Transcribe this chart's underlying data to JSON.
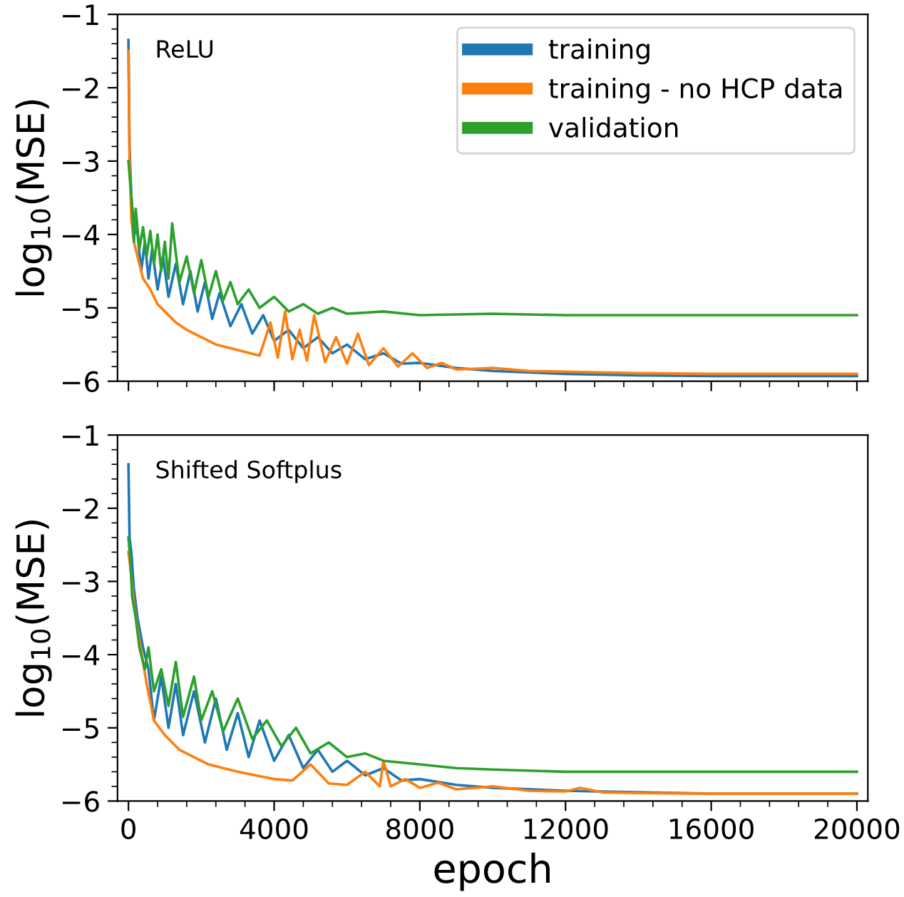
{
  "chart_data": [
    {
      "type": "line",
      "ylabel": "log$_{10}$(MSE)",
      "annotations": [
        "ReLU"
      ],
      "xlim": [
        -300,
        20300
      ],
      "ylim": [
        -6,
        -1
      ],
      "xticks": [
        0,
        4000,
        8000,
        12000,
        16000,
        20000
      ],
      "yticks": [
        -6,
        -5,
        -4,
        -3,
        -2,
        -1
      ],
      "tick_labels": "y",
      "legend": "top right",
      "grid": false,
      "series": [
        {
          "name": "training",
          "color": "#1f77b4",
          "x": [
            0,
            30,
            80,
            150,
            250,
            350,
            450,
            550,
            650,
            800,
            950,
            1100,
            1300,
            1500,
            1700,
            1900,
            2100,
            2300,
            2500,
            2800,
            3100,
            3400,
            3700,
            4000,
            4400,
            4800,
            5200,
            5600,
            6000,
            6500,
            7000,
            7500,
            8000,
            9000,
            10000,
            12000,
            14000,
            16000,
            18000,
            20000
          ],
          "values": [
            -1.35,
            -2.8,
            -3.5,
            -3.9,
            -4.0,
            -4.5,
            -4.1,
            -4.6,
            -4.2,
            -4.75,
            -4.3,
            -4.85,
            -4.4,
            -4.95,
            -4.5,
            -5.05,
            -4.65,
            -5.15,
            -4.8,
            -5.25,
            -4.95,
            -5.35,
            -5.1,
            -5.45,
            -5.3,
            -5.55,
            -5.4,
            -5.62,
            -5.5,
            -5.7,
            -5.62,
            -5.76,
            -5.75,
            -5.82,
            -5.86,
            -5.9,
            -5.92,
            -5.93,
            -5.93,
            -5.93
          ]
        },
        {
          "name": "training - no HCP data",
          "color": "#ff7f0e",
          "x": [
            0,
            30,
            80,
            150,
            250,
            400,
            600,
            800,
            1000,
            1300,
            1600,
            2000,
            2400,
            2800,
            3200,
            3600,
            3900,
            4100,
            4300,
            4500,
            4700,
            4900,
            5100,
            5400,
            5700,
            6000,
            6300,
            6600,
            7000,
            7400,
            7800,
            8200,
            8600,
            9000,
            10000,
            11000,
            12000,
            14000,
            16000,
            20000
          ],
          "values": [
            -1.5,
            -3.0,
            -3.8,
            -4.1,
            -4.3,
            -4.6,
            -4.75,
            -4.95,
            -5.05,
            -5.2,
            -5.3,
            -5.4,
            -5.5,
            -5.55,
            -5.6,
            -5.65,
            -5.2,
            -5.68,
            -5.05,
            -5.7,
            -5.3,
            -5.72,
            -5.1,
            -5.74,
            -5.4,
            -5.76,
            -5.35,
            -5.78,
            -5.55,
            -5.8,
            -5.62,
            -5.82,
            -5.75,
            -5.84,
            -5.82,
            -5.86,
            -5.87,
            -5.89,
            -5.9,
            -5.9
          ]
        },
        {
          "name": "validation",
          "color": "#2ca02c",
          "x": [
            0,
            100,
            150,
            200,
            300,
            400,
            500,
            600,
            700,
            800,
            900,
            1000,
            1100,
            1200,
            1400,
            1600,
            1800,
            2000,
            2200,
            2400,
            2600,
            2800,
            3000,
            3300,
            3600,
            4000,
            4400,
            4800,
            5200,
            5600,
            6000,
            7000,
            8000,
            10000,
            12000,
            14000,
            16000,
            18000,
            20000
          ],
          "values": [
            -3.0,
            -3.6,
            -4.1,
            -3.65,
            -4.2,
            -3.9,
            -4.3,
            -3.95,
            -4.4,
            -4.0,
            -4.5,
            -4.1,
            -4.6,
            -3.85,
            -4.65,
            -4.3,
            -4.8,
            -4.35,
            -4.85,
            -4.5,
            -4.9,
            -4.65,
            -4.95,
            -4.75,
            -5.0,
            -4.85,
            -5.05,
            -4.95,
            -5.08,
            -5.0,
            -5.08,
            -5.05,
            -5.1,
            -5.08,
            -5.1,
            -5.1,
            -5.1,
            -5.1,
            -5.1
          ]
        }
      ]
    },
    {
      "type": "line",
      "xlabel": "epoch",
      "ylabel": "log$_{10}$(MSE)",
      "annotations": [
        "Shifted Softplus"
      ],
      "xlim": [
        -300,
        20300
      ],
      "ylim": [
        -6,
        -1
      ],
      "xticks": [
        0,
        4000,
        8000,
        12000,
        16000,
        20000
      ],
      "yticks": [
        -6,
        -5,
        -4,
        -3,
        -2,
        -1
      ],
      "grid": false,
      "series": [
        {
          "color": "#1f77b4",
          "x": [
            0,
            30,
            80,
            150,
            250,
            400,
            550,
            700,
            900,
            1100,
            1300,
            1500,
            1800,
            2100,
            2400,
            2700,
            3000,
            3300,
            3600,
            4000,
            4400,
            4800,
            5200,
            5600,
            6000,
            6500,
            7000,
            7500,
            8000,
            9000,
            10000,
            12000,
            14000,
            16000,
            20000
          ],
          "values": [
            -1.4,
            -2.4,
            -2.6,
            -3.1,
            -3.5,
            -3.9,
            -4.2,
            -4.9,
            -4.3,
            -5.0,
            -4.4,
            -5.1,
            -4.5,
            -5.2,
            -4.6,
            -5.3,
            -4.8,
            -5.4,
            -4.9,
            -5.45,
            -5.1,
            -5.55,
            -5.3,
            -5.6,
            -5.45,
            -5.65,
            -5.55,
            -5.72,
            -5.7,
            -5.78,
            -5.82,
            -5.86,
            -5.88,
            -5.9,
            -5.9
          ]
        },
        {
          "color": "#ff7f0e",
          "x": [
            0,
            50,
            150,
            300,
            500,
            700,
            1000,
            1400,
            1800,
            2200,
            2600,
            3000,
            3500,
            4000,
            4500,
            5000,
            5500,
            6000,
            6500,
            6900,
            7000,
            7200,
            7600,
            8000,
            8500,
            9000,
            10000,
            11000,
            12000,
            12400,
            13000,
            14000,
            16000,
            20000
          ],
          "values": [
            -2.6,
            -2.8,
            -3.3,
            -3.8,
            -4.4,
            -4.9,
            -5.1,
            -5.3,
            -5.4,
            -5.5,
            -5.55,
            -5.6,
            -5.65,
            -5.7,
            -5.72,
            -5.5,
            -5.76,
            -5.78,
            -5.6,
            -5.8,
            -5.45,
            -5.8,
            -5.7,
            -5.82,
            -5.75,
            -5.84,
            -5.8,
            -5.86,
            -5.87,
            -5.82,
            -5.88,
            -5.89,
            -5.9,
            -5.9
          ]
        },
        {
          "color": "#2ca02c",
          "x": [
            0,
            50,
            100,
            200,
            300,
            450,
            550,
            700,
            900,
            1100,
            1300,
            1500,
            1800,
            2000,
            2300,
            2600,
            3000,
            3400,
            3800,
            4200,
            4600,
            5000,
            5500,
            6000,
            6500,
            7000,
            8000,
            9000,
            10000,
            12000,
            14000,
            16000,
            20000
          ],
          "values": [
            -2.4,
            -2.7,
            -3.2,
            -3.5,
            -3.9,
            -4.2,
            -3.9,
            -4.5,
            -4.2,
            -4.7,
            -4.1,
            -4.85,
            -4.3,
            -4.9,
            -4.5,
            -5.05,
            -4.6,
            -5.15,
            -4.9,
            -5.25,
            -5.0,
            -5.35,
            -5.2,
            -5.4,
            -5.35,
            -5.45,
            -5.5,
            -5.55,
            -5.57,
            -5.6,
            -5.6,
            -5.6,
            -5.6
          ]
        }
      ]
    }
  ]
}
